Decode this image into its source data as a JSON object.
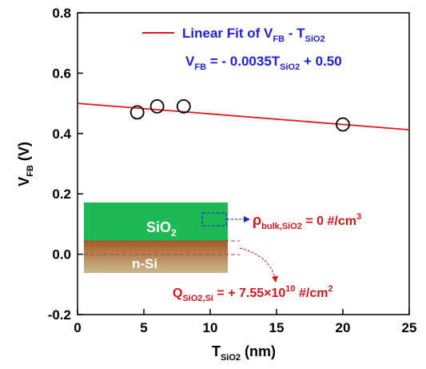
{
  "chart_data": {
    "type": "scatter",
    "x_label": [
      "T",
      "SiO2",
      " (nm)"
    ],
    "y_label": [
      "V",
      "FB",
      " (V)"
    ],
    "x": [
      4.5,
      6,
      8,
      20
    ],
    "values": [
      0.47,
      0.49,
      0.49,
      0.43
    ],
    "marker_color": "#000000",
    "fit": {
      "slope": -0.0035,
      "intercept": 0.5,
      "color": "#e0191e",
      "legend": [
        "Linear Fit of V",
        "FB",
        " - T",
        "SiO2"
      ],
      "equation": [
        "V",
        "FB",
        " = - 0.0035T",
        "SiO2",
        " + 0.50"
      ]
    },
    "xlim": [
      0,
      25
    ],
    "xticks": [
      0,
      5,
      10,
      15,
      20,
      25
    ],
    "ylim": [
      -0.2,
      0.8
    ],
    "yticks": [
      -0.2,
      {
        "value": 0,
        "label": "0.0"
      },
      0.2,
      0.4,
      0.6,
      0.8
    ],
    "inset": {
      "oxide": [
        "SiO",
        "2"
      ],
      "substrate": "n-Si",
      "rho": [
        "ρ",
        "bulk,SiO2",
        " = 0 #/cm",
        "3"
      ],
      "charge": [
        "Q",
        "SiO2,Si",
        " = + 7.55×10",
        "10",
        " #/cm",
        "2"
      ]
    }
  }
}
